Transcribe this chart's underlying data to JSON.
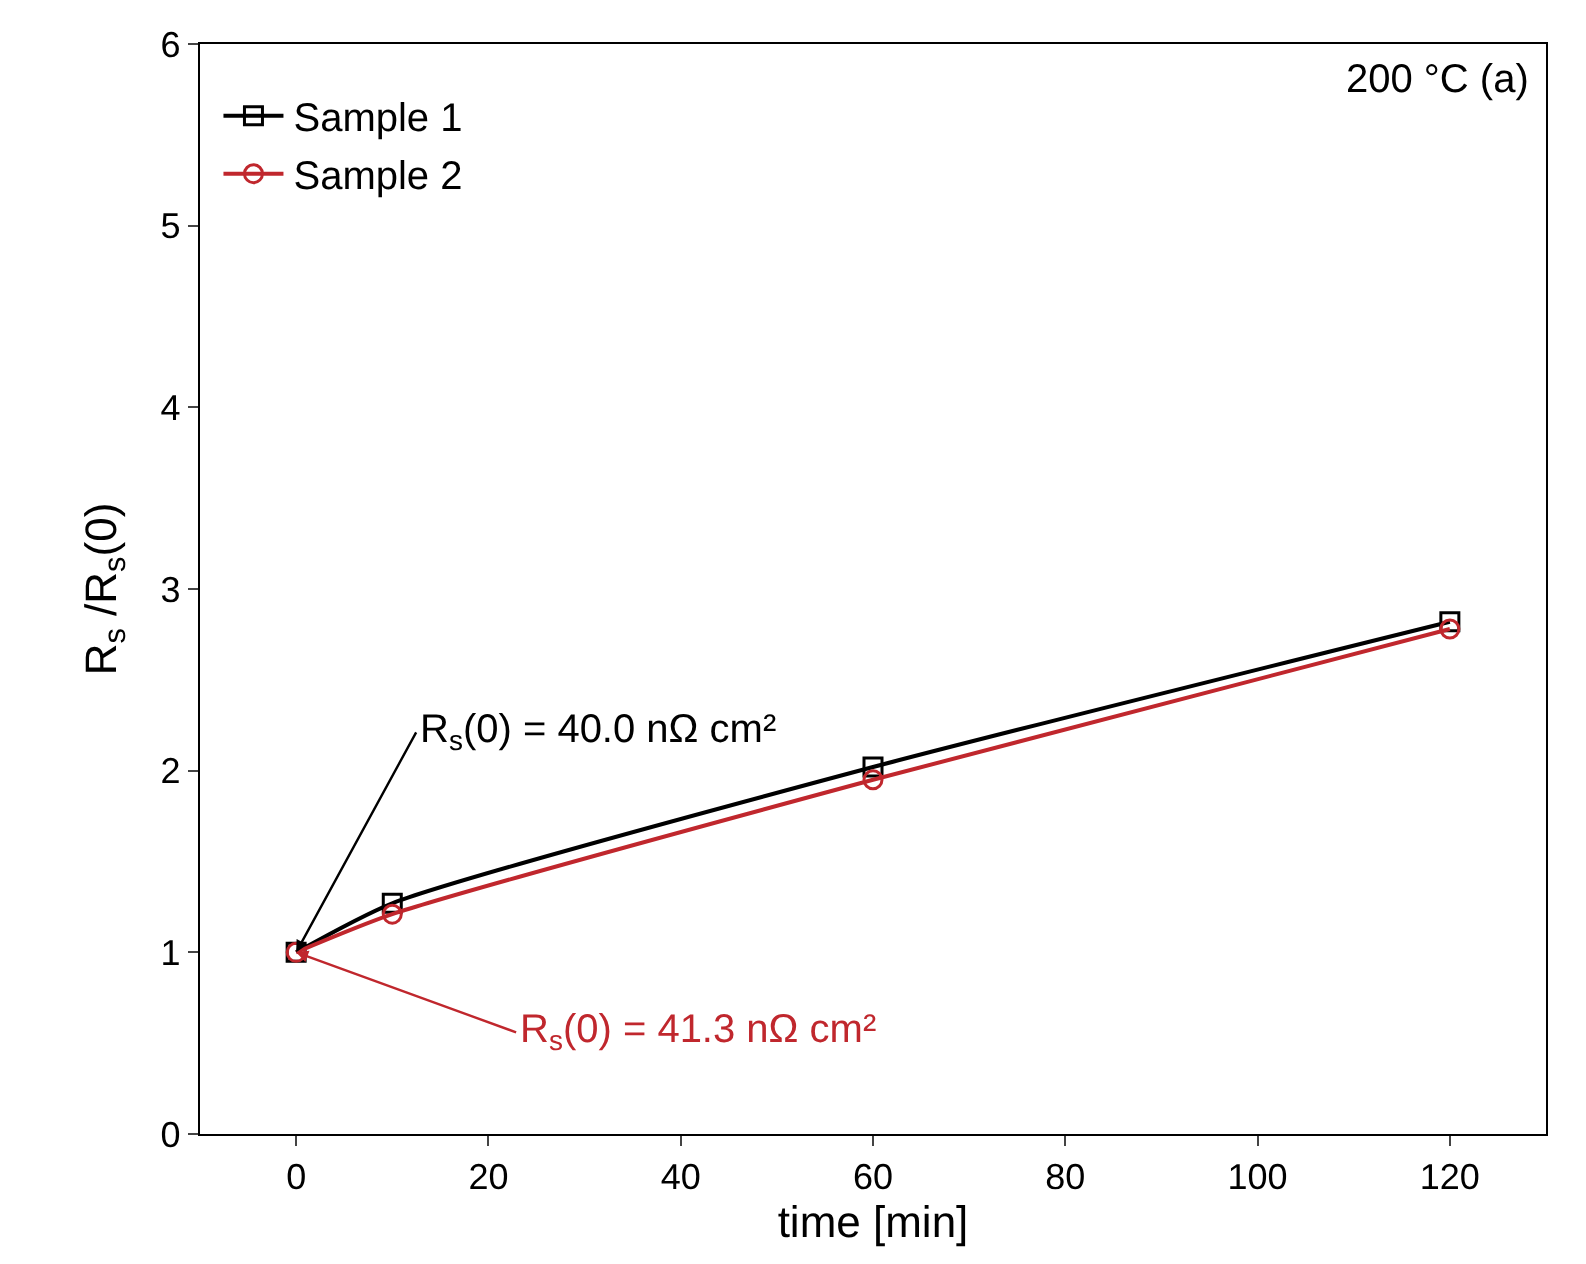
{
  "chart_data": {
    "type": "line",
    "xlabel": "time [min]",
    "ylabel": "R$_{s}$ /R$_{s}$(0)",
    "x": [
      0,
      10,
      60,
      120
    ],
    "series": [
      {
        "name": "Sample 1",
        "color": "#000000",
        "values": [
          1.0,
          1.27,
          2.02,
          2.82
        ],
        "marker": "square"
      },
      {
        "name": "Sample 2",
        "color": "#c0272d",
        "values": [
          1.0,
          1.21,
          1.95,
          2.78
        ],
        "marker": "circle"
      }
    ],
    "annotations": [
      {
        "text": "R$_{s}$(0) = 40.0 nΩ cm²",
        "x": 0,
        "y": 1.0
      },
      {
        "text": "R$_{s}$(0) = 41.3 nΩ cm²",
        "x": 0,
        "y": 1.0
      },
      "200 °C (a)"
    ],
    "xlim": [
      -10,
      130
    ],
    "xticks": [
      0,
      20,
      40,
      60,
      80,
      100,
      120
    ],
    "ylim": [
      0,
      6
    ],
    "yticks": [
      0,
      1,
      2,
      3,
      4,
      5,
      6
    ],
    "legend": "top left",
    "line_style": "solid"
  }
}
